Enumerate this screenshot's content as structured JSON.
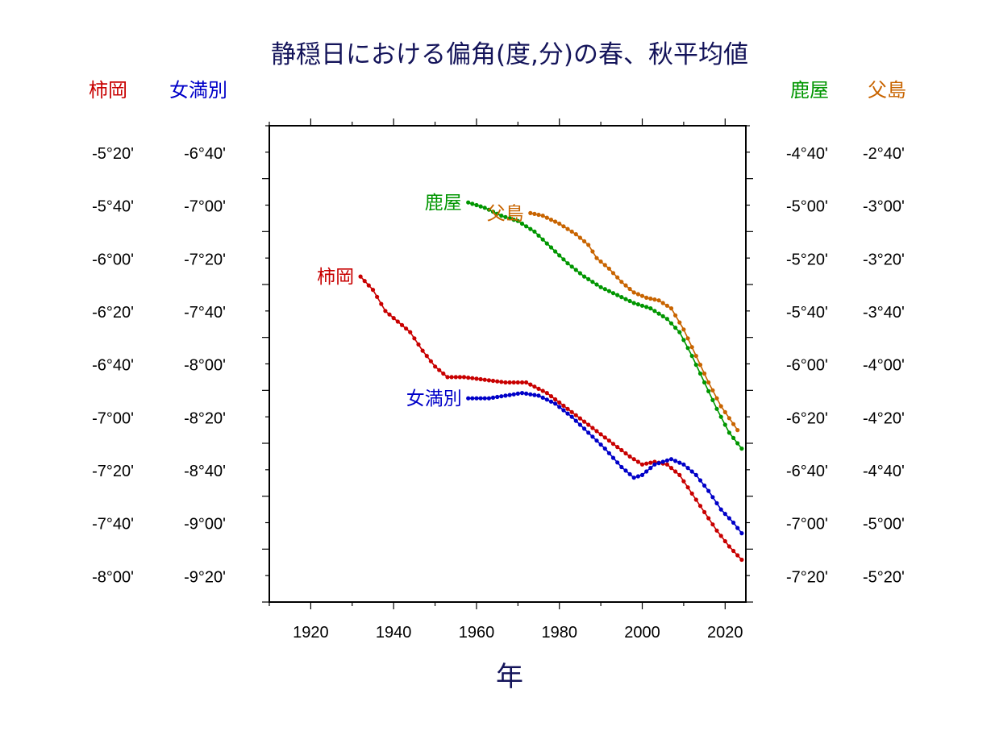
{
  "colors": {
    "kakioka": "#c80000",
    "memambetsu": "#0000c8",
    "kanoya": "#009600",
    "chichijima": "#c86400",
    "title": "#14145a",
    "text": "#000000"
  },
  "header": {
    "title": "静穏日における偏角(度,分)の春、秋平均値",
    "left_axis_1": "柿岡",
    "left_axis_2": "女満別",
    "right_axis_1": "鹿屋",
    "right_axis_2": "父島"
  },
  "chart_data": {
    "type": "line",
    "title": "静穏日における偏角(度,分)の春、秋平均値",
    "xlabel": "年",
    "xlim": [
      1910,
      2025
    ],
    "xticks": [
      1920,
      1940,
      1960,
      1980,
      2000,
      2020
    ],
    "grid": false,
    "y_axes": [
      {
        "station": "柿岡",
        "side": "left",
        "outer": true,
        "range_minutes": [
          -490,
          -310
        ],
        "tick_labels": [
          "-5°20'",
          "-5°40'",
          "-6°00'",
          "-6°20'",
          "-6°40'",
          "-7°00'",
          "-7°20'",
          "-7°40'",
          "-8°00'"
        ]
      },
      {
        "station": "女満別",
        "side": "left",
        "outer": false,
        "range_minutes": [
          -570,
          -390
        ],
        "tick_labels": [
          "-6°40'",
          "-7°00'",
          "-7°20'",
          "-7°40'",
          "-8°00'",
          "-8°20'",
          "-8°40'",
          "-9°00'",
          "-9°20'"
        ]
      },
      {
        "station": "鹿屋",
        "side": "right",
        "outer": false,
        "range_minutes": [
          -450,
          -270
        ],
        "tick_labels": [
          "-4°40'",
          "-5°00'",
          "-5°20'",
          "-5°40'",
          "-6°00'",
          "-6°20'",
          "-6°40'",
          "-7°00'",
          "-7°20'"
        ]
      },
      {
        "station": "父島",
        "side": "right",
        "outer": true,
        "range_minutes": [
          -330,
          -150
        ],
        "tick_labels": [
          "-2°40'",
          "-3°00'",
          "-3°20'",
          "-3°40'",
          "-4°00'",
          "-4°20'",
          "-4°40'",
          "-5°00'",
          "-5°20'"
        ]
      }
    ],
    "series": [
      {
        "name": "柿岡",
        "key": "kakioka",
        "label_anchor": "start",
        "points": [
          [
            1932,
            -367
          ],
          [
            1935,
            -372
          ],
          [
            1938,
            -380
          ],
          [
            1941,
            -384
          ],
          [
            1944,
            -388
          ],
          [
            1947,
            -395
          ],
          [
            1950,
            -401
          ],
          [
            1953,
            -405
          ],
          [
            1957,
            -405
          ],
          [
            1962,
            -406
          ],
          [
            1967,
            -407
          ],
          [
            1972,
            -407
          ],
          [
            1977,
            -411
          ],
          [
            1982,
            -417
          ],
          [
            1987,
            -423
          ],
          [
            1992,
            -429
          ],
          [
            1997,
            -435
          ],
          [
            2000,
            -438
          ],
          [
            2003,
            -437
          ],
          [
            2006,
            -438
          ],
          [
            2009,
            -442
          ],
          [
            2012,
            -449
          ],
          [
            2015,
            -456
          ],
          [
            2018,
            -463
          ],
          [
            2021,
            -469
          ],
          [
            2024,
            -474
          ]
        ]
      },
      {
        "name": "女満別",
        "key": "memambetsu",
        "label_anchor": "start",
        "points": [
          [
            1958,
            -493
          ],
          [
            1963,
            -493
          ],
          [
            1967,
            -492
          ],
          [
            1971,
            -491
          ],
          [
            1975,
            -492
          ],
          [
            1979,
            -495
          ],
          [
            1983,
            -500
          ],
          [
            1987,
            -506
          ],
          [
            1991,
            -512
          ],
          [
            1995,
            -519
          ],
          [
            1998,
            -523
          ],
          [
            2000,
            -522
          ],
          [
            2003,
            -518
          ],
          [
            2007,
            -516
          ],
          [
            2010,
            -518
          ],
          [
            2013,
            -522
          ],
          [
            2016,
            -528
          ],
          [
            2019,
            -535
          ],
          [
            2022,
            -540
          ],
          [
            2024,
            -544
          ]
        ]
      },
      {
        "name": "鹿屋",
        "key": "kanoya",
        "label_anchor": "start",
        "points": [
          [
            1958,
            -299
          ],
          [
            1962,
            -301
          ],
          [
            1966,
            -304
          ],
          [
            1970,
            -306
          ],
          [
            1974,
            -310
          ],
          [
            1978,
            -316
          ],
          [
            1982,
            -322
          ],
          [
            1986,
            -327
          ],
          [
            1990,
            -331
          ],
          [
            1994,
            -334
          ],
          [
            1998,
            -337
          ],
          [
            2002,
            -339
          ],
          [
            2006,
            -343
          ],
          [
            2009,
            -348
          ],
          [
            2012,
            -357
          ],
          [
            2015,
            -367
          ],
          [
            2018,
            -377
          ],
          [
            2021,
            -386
          ],
          [
            2024,
            -392
          ]
        ]
      },
      {
        "name": "父島",
        "key": "chichijima",
        "label_anchor": "start",
        "points": [
          [
            1973,
            -183
          ],
          [
            1976,
            -184
          ],
          [
            1980,
            -187
          ],
          [
            1984,
            -191
          ],
          [
            1987,
            -195
          ],
          [
            1989,
            -200
          ],
          [
            1992,
            -204
          ],
          [
            1995,
            -209
          ],
          [
            1998,
            -213
          ],
          [
            2001,
            -215
          ],
          [
            2004,
            -216
          ],
          [
            2007,
            -219
          ],
          [
            2010,
            -227
          ],
          [
            2013,
            -237
          ],
          [
            2016,
            -247
          ],
          [
            2019,
            -256
          ],
          [
            2023,
            -265
          ]
        ]
      }
    ]
  }
}
